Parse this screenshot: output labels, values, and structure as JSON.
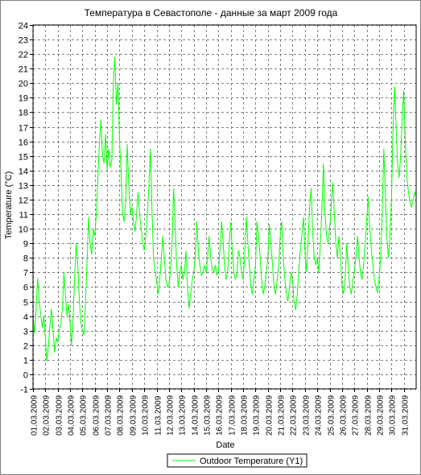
{
  "chart_data": {
    "type": "line",
    "title": "Температура в Севастополе - данные за март 2009 года",
    "xlabel": "Date",
    "ylabel": "Temperature (°C)",
    "ylim": [
      -1,
      24
    ],
    "yticks": [
      -1,
      0,
      1,
      2,
      3,
      4,
      5,
      6,
      7,
      8,
      9,
      10,
      11,
      12,
      13,
      14,
      15,
      16,
      17,
      18,
      19,
      20,
      21,
      22,
      23,
      24
    ],
    "xlim": [
      0,
      31
    ],
    "xticks": [
      "01.03.2009",
      "02.03.2009",
      "03.03.2009",
      "04.03.2009",
      "05.03.2009",
      "06.03.2009",
      "07.03.2009",
      "08.03.2009",
      "09.03.2009",
      "10.03.2009",
      "11.03.2009",
      "12.03.2009",
      "13.03.2009",
      "14.03.2009",
      "15.03.2009",
      "16.03.2009",
      "17.03.2009",
      "18.03.2009",
      "19.03.2009",
      "20.03.2009",
      "21.03.2009",
      "22.03.2009",
      "23.03.2009",
      "24.03.2009",
      "25.03.2009",
      "26.03.2009",
      "27.03.2009",
      "28.03.2009",
      "29.03.2009",
      "30.03.2009",
      "31.03.2009"
    ],
    "grid": true,
    "legend_position": "bottom",
    "series": [
      {
        "name": "Outdoor Temperature (Y1)",
        "color": "#00ff00",
        "x_unit": "days from 01.03.2009 00:00",
        "points": [
          [
            0.0,
            4.0
          ],
          [
            0.12,
            2.8
          ],
          [
            0.25,
            4.5
          ],
          [
            0.38,
            6.6
          ],
          [
            0.5,
            5.0
          ],
          [
            0.62,
            4.2
          ],
          [
            0.75,
            3.2
          ],
          [
            0.88,
            4.0
          ],
          [
            1.0,
            2.5
          ],
          [
            1.12,
            0.9
          ],
          [
            1.25,
            2.0
          ],
          [
            1.38,
            3.5
          ],
          [
            1.5,
            4.5
          ],
          [
            1.62,
            3.0
          ],
          [
            1.75,
            1.5
          ],
          [
            1.88,
            2.5
          ],
          [
            2.0,
            2.2
          ],
          [
            2.12,
            3.0
          ],
          [
            2.25,
            3.5
          ],
          [
            2.38,
            4.5
          ],
          [
            2.5,
            7.0
          ],
          [
            2.62,
            5.5
          ],
          [
            2.75,
            4.0
          ],
          [
            2.88,
            4.8
          ],
          [
            3.0,
            3.5
          ],
          [
            3.12,
            2.0
          ],
          [
            3.25,
            4.0
          ],
          [
            3.38,
            7.0
          ],
          [
            3.5,
            9.0
          ],
          [
            3.62,
            7.5
          ],
          [
            3.75,
            5.0
          ],
          [
            3.88,
            3.5
          ],
          [
            4.0,
            3.0
          ],
          [
            4.12,
            2.7
          ],
          [
            4.25,
            5.0
          ],
          [
            4.38,
            8.0
          ],
          [
            4.5,
            10.8
          ],
          [
            4.62,
            9.0
          ],
          [
            4.75,
            8.2
          ],
          [
            4.88,
            10.0
          ],
          [
            5.0,
            9.5
          ],
          [
            5.12,
            11.0
          ],
          [
            5.25,
            13.5
          ],
          [
            5.38,
            16.0
          ],
          [
            5.5,
            17.5
          ],
          [
            5.62,
            15.0
          ],
          [
            5.75,
            14.5
          ],
          [
            5.88,
            16.5
          ],
          [
            6.0,
            14.0
          ],
          [
            6.12,
            15.5
          ],
          [
            6.25,
            14.2
          ],
          [
            6.38,
            14.8
          ],
          [
            6.5,
            20.0
          ],
          [
            6.62,
            21.8
          ],
          [
            6.75,
            18.5
          ],
          [
            6.88,
            20.0
          ],
          [
            7.0,
            16.0
          ],
          [
            7.12,
            14.0
          ],
          [
            7.25,
            11.0
          ],
          [
            7.38,
            10.5
          ],
          [
            7.5,
            12.0
          ],
          [
            7.62,
            15.8
          ],
          [
            7.75,
            13.0
          ],
          [
            7.88,
            11.0
          ],
          [
            8.0,
            11.5
          ],
          [
            8.12,
            10.5
          ],
          [
            8.25,
            9.8
          ],
          [
            8.38,
            11.0
          ],
          [
            8.5,
            12.5
          ],
          [
            8.62,
            11.0
          ],
          [
            8.75,
            10.0
          ],
          [
            8.88,
            9.0
          ],
          [
            9.0,
            8.5
          ],
          [
            9.12,
            9.5
          ],
          [
            9.25,
            11.0
          ],
          [
            9.38,
            13.0
          ],
          [
            9.5,
            15.5
          ],
          [
            9.62,
            11.5
          ],
          [
            9.75,
            8.0
          ],
          [
            9.88,
            7.0
          ],
          [
            10.0,
            6.5
          ],
          [
            10.12,
            5.5
          ],
          [
            10.25,
            6.5
          ],
          [
            10.38,
            8.0
          ],
          [
            10.5,
            9.5
          ],
          [
            10.62,
            8.0
          ],
          [
            10.75,
            6.5
          ],
          [
            10.88,
            6.0
          ],
          [
            11.0,
            6.2
          ],
          [
            11.12,
            7.0
          ],
          [
            11.25,
            9.0
          ],
          [
            11.38,
            12.8
          ],
          [
            11.5,
            10.5
          ],
          [
            11.62,
            7.5
          ],
          [
            11.75,
            6.0
          ],
          [
            11.88,
            7.0
          ],
          [
            12.0,
            7.5
          ],
          [
            12.12,
            6.5
          ],
          [
            12.25,
            7.0
          ],
          [
            12.38,
            8.5
          ],
          [
            12.5,
            6.0
          ],
          [
            12.62,
            4.5
          ],
          [
            12.75,
            5.5
          ],
          [
            12.88,
            6.5
          ],
          [
            13.0,
            7.0
          ],
          [
            13.12,
            8.0
          ],
          [
            13.25,
            10.5
          ],
          [
            13.38,
            8.5
          ],
          [
            13.5,
            7.5
          ],
          [
            13.62,
            6.8
          ],
          [
            13.75,
            7.0
          ],
          [
            13.88,
            7.5
          ],
          [
            14.0,
            7.0
          ],
          [
            14.12,
            8.0
          ],
          [
            14.25,
            9.5
          ],
          [
            14.38,
            8.0
          ],
          [
            14.5,
            7.2
          ],
          [
            14.62,
            7.0
          ],
          [
            14.75,
            7.5
          ],
          [
            14.88,
            6.8
          ],
          [
            15.0,
            7.0
          ],
          [
            15.12,
            8.5
          ],
          [
            15.25,
            10.5
          ],
          [
            15.38,
            9.0
          ],
          [
            15.5,
            7.5
          ],
          [
            15.62,
            6.5
          ],
          [
            15.75,
            7.0
          ],
          [
            15.88,
            9.0
          ],
          [
            16.0,
            10.5
          ],
          [
            16.12,
            8.5
          ],
          [
            16.25,
            7.0
          ],
          [
            16.38,
            6.5
          ],
          [
            16.5,
            7.0
          ],
          [
            16.62,
            8.5
          ],
          [
            16.75,
            8.0
          ],
          [
            16.88,
            7.0
          ],
          [
            17.0,
            6.5
          ],
          [
            17.12,
            8.0
          ],
          [
            17.25,
            10.8
          ],
          [
            17.38,
            9.0
          ],
          [
            17.5,
            7.5
          ],
          [
            17.62,
            6.0
          ],
          [
            17.75,
            5.5
          ],
          [
            17.88,
            6.5
          ],
          [
            18.0,
            7.5
          ],
          [
            18.12,
            10.5
          ],
          [
            18.25,
            9.5
          ],
          [
            18.38,
            8.0
          ],
          [
            18.5,
            6.5
          ],
          [
            18.62,
            5.5
          ],
          [
            18.75,
            6.0
          ],
          [
            18.88,
            7.0
          ],
          [
            19.0,
            8.0
          ],
          [
            19.12,
            10.3
          ],
          [
            19.25,
            9.0
          ],
          [
            19.38,
            7.5
          ],
          [
            19.5,
            6.0
          ],
          [
            19.62,
            5.5
          ],
          [
            19.75,
            6.5
          ],
          [
            19.88,
            7.5
          ],
          [
            20.0,
            9.5
          ],
          [
            20.12,
            10.5
          ],
          [
            20.25,
            8.0
          ],
          [
            20.38,
            6.5
          ],
          [
            20.5,
            5.5
          ],
          [
            20.62,
            5.0
          ],
          [
            20.75,
            6.0
          ],
          [
            20.88,
            7.0
          ],
          [
            21.0,
            6.5
          ],
          [
            21.12,
            5.0
          ],
          [
            21.25,
            4.4
          ],
          [
            21.38,
            5.5
          ],
          [
            21.5,
            7.0
          ],
          [
            21.62,
            8.5
          ],
          [
            21.75,
            9.5
          ],
          [
            21.88,
            10.8
          ],
          [
            22.0,
            8.5
          ],
          [
            22.12,
            7.0
          ],
          [
            22.25,
            9.0
          ],
          [
            22.38,
            11.5
          ],
          [
            22.5,
            12.8
          ],
          [
            22.62,
            10.0
          ],
          [
            22.75,
            8.0
          ],
          [
            22.88,
            7.5
          ],
          [
            23.0,
            8.0
          ],
          [
            23.12,
            7.0
          ],
          [
            23.25,
            9.0
          ],
          [
            23.38,
            11.5
          ],
          [
            23.5,
            14.5
          ],
          [
            23.62,
            11.0
          ],
          [
            23.75,
            9.5
          ],
          [
            23.88,
            9.0
          ],
          [
            24.0,
            10.0
          ],
          [
            24.12,
            11.5
          ],
          [
            24.25,
            13.2
          ],
          [
            24.38,
            11.0
          ],
          [
            24.5,
            9.0
          ],
          [
            24.62,
            8.0
          ],
          [
            24.75,
            9.5
          ],
          [
            24.88,
            8.0
          ],
          [
            25.0,
            6.0
          ],
          [
            25.12,
            5.5
          ],
          [
            25.25,
            6.5
          ],
          [
            25.38,
            9.0
          ],
          [
            25.5,
            7.5
          ],
          [
            25.62,
            6.0
          ],
          [
            25.75,
            5.5
          ],
          [
            25.88,
            6.5
          ],
          [
            26.0,
            7.0
          ],
          [
            26.12,
            8.0
          ],
          [
            26.25,
            9.5
          ],
          [
            26.38,
            8.0
          ],
          [
            26.5,
            7.0
          ],
          [
            26.62,
            6.5
          ],
          [
            26.75,
            7.5
          ],
          [
            26.88,
            9.0
          ],
          [
            27.0,
            10.5
          ],
          [
            27.12,
            12.2
          ],
          [
            27.25,
            10.0
          ],
          [
            27.38,
            8.5
          ],
          [
            27.5,
            7.5
          ],
          [
            27.62,
            6.5
          ],
          [
            27.75,
            6.0
          ],
          [
            27.88,
            5.6
          ],
          [
            28.0,
            6.5
          ],
          [
            28.12,
            8.0
          ],
          [
            28.25,
            11.0
          ],
          [
            28.38,
            15.5
          ],
          [
            28.5,
            12.5
          ],
          [
            28.62,
            9.5
          ],
          [
            28.75,
            8.0
          ],
          [
            28.88,
            9.5
          ],
          [
            29.0,
            12.0
          ],
          [
            29.12,
            16.5
          ],
          [
            29.25,
            19.8
          ],
          [
            29.38,
            17.0
          ],
          [
            29.5,
            14.5
          ],
          [
            29.62,
            13.5
          ],
          [
            29.75,
            15.0
          ],
          [
            29.88,
            18.0
          ],
          [
            30.0,
            19.5
          ],
          [
            30.12,
            16.0
          ],
          [
            30.25,
            13.5
          ],
          [
            30.38,
            12.5
          ],
          [
            30.5,
            11.8
          ],
          [
            30.62,
            11.5
          ],
          [
            30.75,
            12.0
          ],
          [
            30.88,
            12.5
          ],
          [
            31.0,
            12.2
          ]
        ]
      }
    ]
  }
}
